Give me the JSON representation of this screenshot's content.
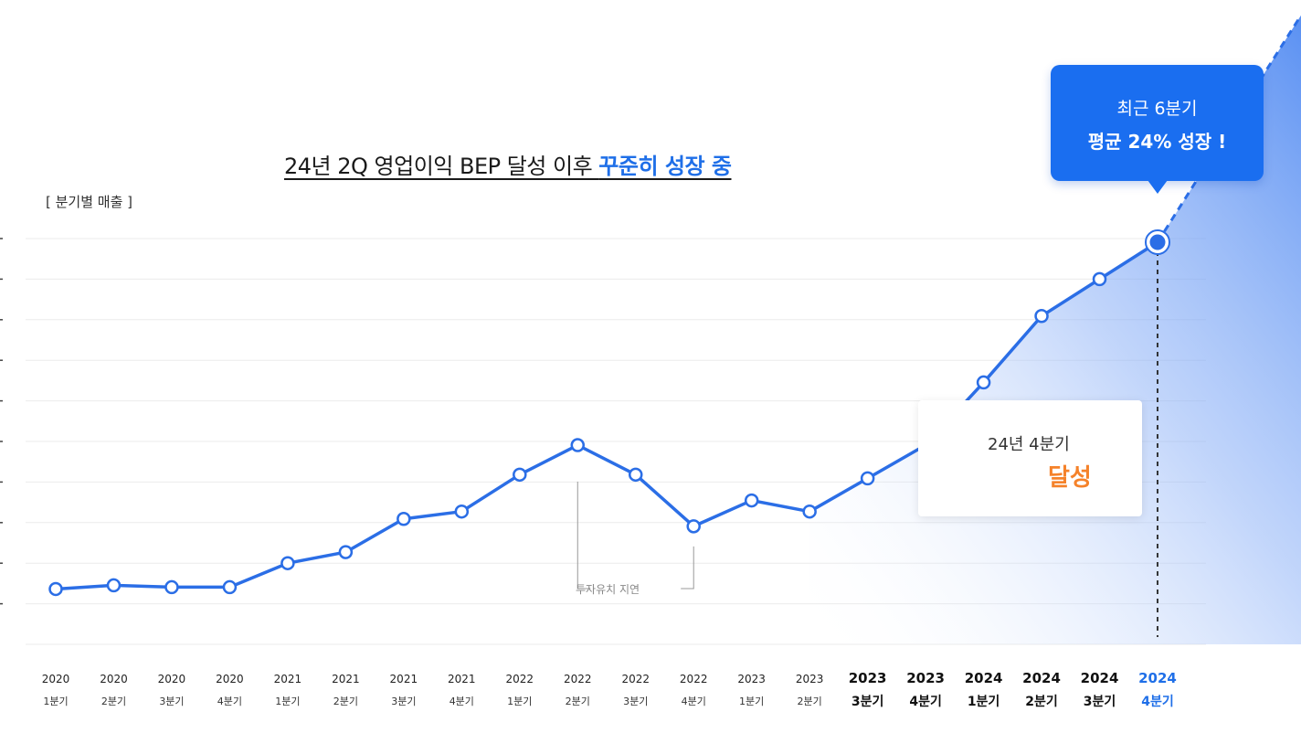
{
  "title": {
    "prefix": "24년 2Q 영업이익 BEP 달성 이후 ",
    "highlight": "꾸준히 성장 중"
  },
  "y_axis_label": "[ 분기별 매출 ]",
  "callout_growth": {
    "line1": "최근 6분기",
    "line2": "평균 24% 성장 !"
  },
  "callout_achieved": {
    "line1": "24년 4분기",
    "line2": "달성"
  },
  "annotation": "투자유치 지연",
  "colors": {
    "line": "#2b6ee6",
    "callout_blue": "#1a6ef0",
    "achieved_text": "#f5822a",
    "highlight_text": "#1f6fe8"
  },
  "chart_data": {
    "type": "line",
    "categories": [
      {
        "year": "2020",
        "quarter": "1분기"
      },
      {
        "year": "2020",
        "quarter": "2분기"
      },
      {
        "year": "2020",
        "quarter": "3분기"
      },
      {
        "year": "2020",
        "quarter": "4분기"
      },
      {
        "year": "2021",
        "quarter": "1분기"
      },
      {
        "year": "2021",
        "quarter": "2분기"
      },
      {
        "year": "2021",
        "quarter": "3분기"
      },
      {
        "year": "2021",
        "quarter": "4분기"
      },
      {
        "year": "2022",
        "quarter": "1분기"
      },
      {
        "year": "2022",
        "quarter": "2분기"
      },
      {
        "year": "2022",
        "quarter": "3분기"
      },
      {
        "year": "2022",
        "quarter": "4분기"
      },
      {
        "year": "2023",
        "quarter": "1분기"
      },
      {
        "year": "2023",
        "quarter": "2분기"
      },
      {
        "year": "2023",
        "quarter": "3분기"
      },
      {
        "year": "2023",
        "quarter": "4분기"
      },
      {
        "year": "2024",
        "quarter": "1분기"
      },
      {
        "year": "2024",
        "quarter": "2분기"
      },
      {
        "year": "2024",
        "quarter": "3분기"
      },
      {
        "year": "2024",
        "quarter": "4분기"
      }
    ],
    "values": [
      0.6,
      0.7,
      0.65,
      0.65,
      1.3,
      1.6,
      2.5,
      2.7,
      3.7,
      4.5,
      3.7,
      2.3,
      3.0,
      2.7,
      3.6,
      4.5,
      6.2,
      8.0,
      9.0,
      10.0
    ],
    "ylim": [
      -0.9,
      10.1
    ],
    "gridlines": 10,
    "grid": true,
    "emphasized_categories": [
      14,
      15,
      16,
      17,
      18,
      19
    ],
    "highlighted_category": 19,
    "annotation_range": [
      9,
      11
    ]
  }
}
